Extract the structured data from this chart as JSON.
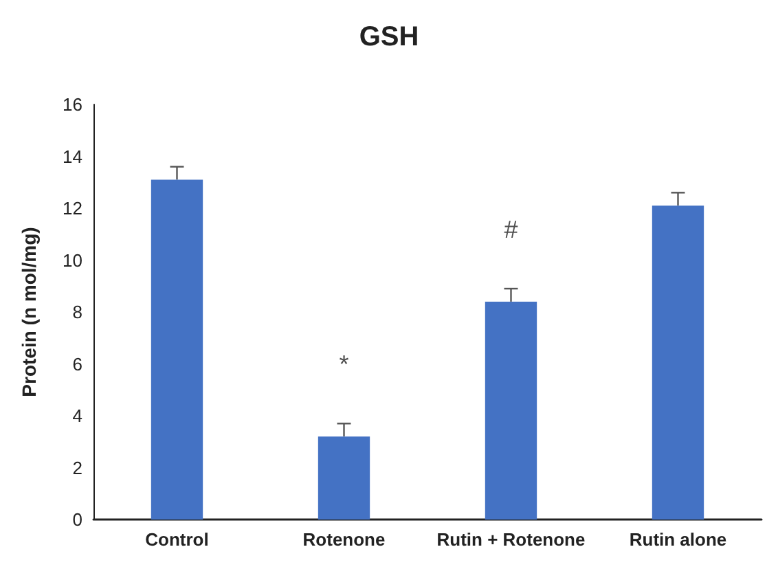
{
  "chart_data": {
    "type": "bar",
    "title": "GSH",
    "ylabel": "Protein (n mol/mg)",
    "categories": [
      "Control",
      "Rotenone",
      "Rutin + Rotenone",
      "Rutin alone"
    ],
    "values": [
      13.1,
      3.2,
      8.4,
      12.1
    ],
    "color": "#4472c4",
    "errors": [
      [
        13.1,
        13.6
      ],
      [
        3.2,
        3.7
      ],
      [
        8.4,
        8.9
      ],
      [
        12.1,
        12.6
      ]
    ],
    "value_labels": [
      null,
      "*",
      "#",
      null
    ],
    "ylim": [
      0,
      16
    ],
    "yticks": [
      0,
      2,
      4,
      6,
      8,
      10,
      12,
      14,
      16
    ],
    "grid": false
  }
}
